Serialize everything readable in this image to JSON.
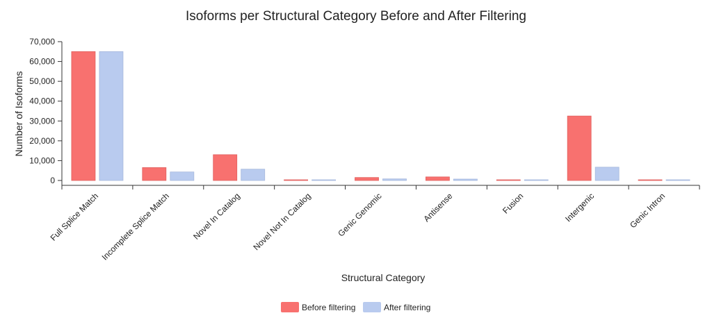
{
  "chart_data": {
    "type": "bar",
    "title": "Isoforms per Structural Category Before and After Filtering",
    "xlabel": "Structural Category",
    "ylabel": "Number of Isoforms",
    "ylim": [
      0,
      70000
    ],
    "yticks": [
      0,
      10000,
      20000,
      30000,
      40000,
      50000,
      60000,
      70000
    ],
    "ytick_labels": [
      "0",
      "10,000",
      "20,000",
      "30,000",
      "40,000",
      "50,000",
      "60,000",
      "70,000"
    ],
    "categories": [
      "Full Splice Match",
      "Incomplete Splice Match",
      "Novel In Catalog",
      "Novel Not In Catalog",
      "Genic Genomic",
      "Antisense",
      "Fusion",
      "Intergenic",
      "Genic Intron"
    ],
    "series": [
      {
        "name": "Before filtering",
        "color": "#f8716f",
        "values": [
          65000,
          6500,
          13000,
          300,
          1500,
          1800,
          100,
          32500,
          100
        ]
      },
      {
        "name": "After filtering",
        "color": "#b9cbef",
        "values": [
          65000,
          4300,
          5700,
          150,
          800,
          700,
          50,
          6700,
          50
        ]
      }
    ],
    "legend_position": "bottom-center",
    "grid": false
  }
}
